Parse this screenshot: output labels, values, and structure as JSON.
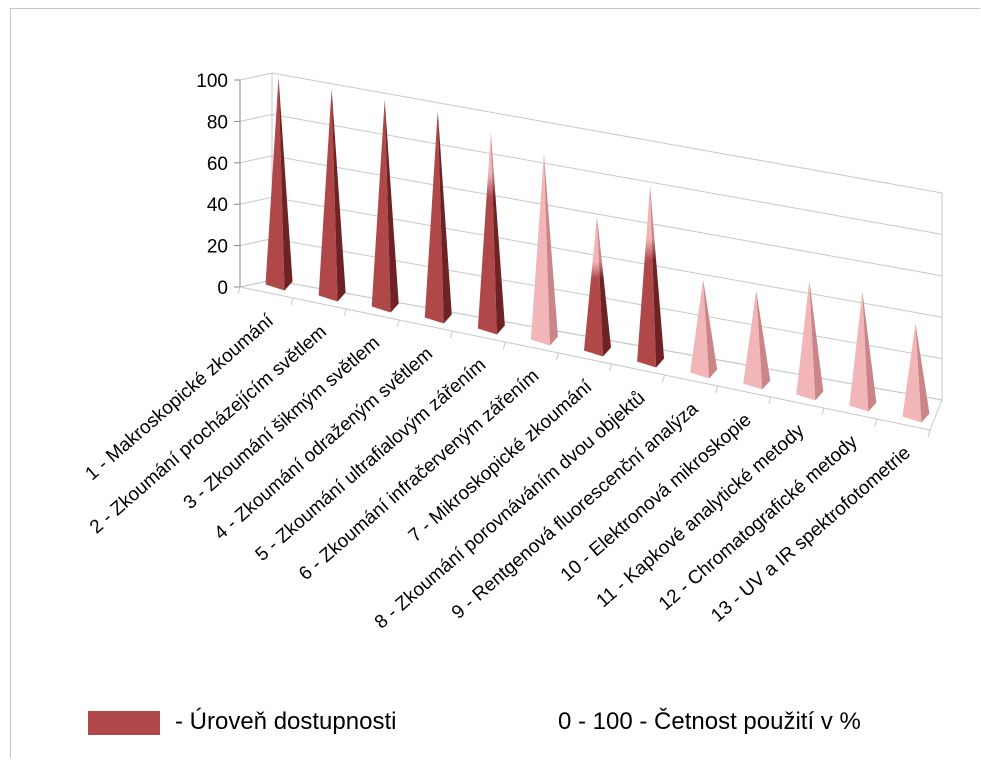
{
  "chart_data": {
    "type": "bar",
    "style": "3d-cone",
    "categories": [
      "1 - Makroskopické zkoumání",
      "2 - Zkoumání procházejícím světlem",
      "3 - Zkoumání šikmým světlem",
      "4 - Zkoumání odraženým světlem",
      "5 - Zkoumání ultrafialovým zářením",
      "6 - Zkoumání infračerveným zářením",
      "7 - Mikroskopické zkoumání",
      "8 - Zkoumání porovnáváním dvou objektů",
      "9 - Rentgenová fluorescenční analýza",
      "10 - Elektronová mikroskopie",
      "11 - Kapkové analytické metody",
      "12 - Chromatografické metody",
      "13 - UV a IR spektrofotometrie"
    ],
    "values": [
      100,
      100,
      100,
      100,
      95,
      90,
      65,
      85,
      45,
      45,
      55,
      55,
      45
    ],
    "availability": [
      100,
      100,
      100,
      100,
      70,
      0,
      40,
      55,
      0,
      0,
      0,
      0,
      0
    ],
    "yticks": [
      "0",
      "20",
      "40",
      "60",
      "80",
      "100"
    ],
    "ylim": [
      0,
      100
    ],
    "grid": true,
    "colors": {
      "dark": "#b0484a",
      "light": "#f2b6b8"
    }
  },
  "legend": {
    "availability_label": "- Úroveň dostupnosti",
    "frequency_label": "0 - 100  - Četnost použití  v %"
  }
}
